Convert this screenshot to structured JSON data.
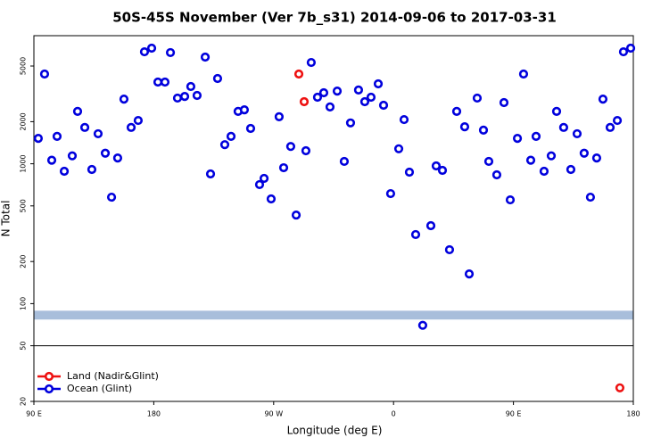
{
  "chart_data": {
    "type": "scatter",
    "title": "50S-45S November (Ver 7b_s31)   2014-09-06 to 2017-03-31",
    "x_label": "Longitude (deg E)",
    "y_label": "N Total",
    "log_y": true,
    "xlim": [
      90,
      540
    ],
    "ylim": [
      20,
      8240
    ],
    "xticks": [
      {
        "value": 90,
        "label": "90 E"
      },
      {
        "value": 180,
        "label": "180"
      },
      {
        "value": 270,
        "label": "90 W"
      },
      {
        "value": 360,
        "label": "0"
      },
      {
        "value": 450,
        "label": "90 E"
      },
      {
        "value": 540,
        "label": "180"
      }
    ],
    "yticks": [
      20,
      50,
      100,
      200,
      500,
      1000,
      2000,
      5000
    ],
    "hline": 50,
    "band": {
      "low": 77,
      "high": 89,
      "color": "#a8bedb"
    },
    "legend": "lower left",
    "series": [
      {
        "name": "Land (Nadir&Glint)",
        "color": "#ee1111",
        "x": [
          288.9,
          292.9,
          529.9
        ],
        "values": [
          4380,
          2780,
          25
        ]
      },
      {
        "name": "Ocean (Glint)",
        "color": "#0000dd",
        "x": [
          93.3,
          98.0,
          103.4,
          107.4,
          112.8,
          118.8,
          122.8,
          128.2,
          133.5,
          138.2,
          143.6,
          148.3,
          152.9,
          157.6,
          163.0,
          168.3,
          173.0,
          178.4,
          183.1,
          188.4,
          192.5,
          197.8,
          203.2,
          207.8,
          212.5,
          218.6,
          222.6,
          227.9,
          233.3,
          238.0,
          243.3,
          248.0,
          252.7,
          259.4,
          262.8,
          268.1,
          274.1,
          277.5,
          282.8,
          286.9,
          294.2,
          298.2,
          302.9,
          307.6,
          312.3,
          317.7,
          323.0,
          327.7,
          333.7,
          338.4,
          343.1,
          348.5,
          352.5,
          357.8,
          363.9,
          367.9,
          371.9,
          376.6,
          381.9,
          388.0,
          392.0,
          396.7,
          402.0,
          407.4,
          413.4,
          416.8,
          422.8,
          427.5,
          431.5,
          437.5,
          442.9,
          447.6,
          453.0,
          457.6,
          463.0,
          467.0,
          473.0,
          478.4,
          482.4,
          487.7,
          493.1,
          497.8,
          503.1,
          507.8,
          512.5,
          517.2,
          522.6,
          528.0,
          532.6,
          538.0
        ],
        "values": [
          1520,
          4380,
          1060,
          1570,
          884,
          1140,
          2370,
          1820,
          910,
          1640,
          1190,
          577,
          1100,
          2900,
          1820,
          2040,
          6320,
          6710,
          3840,
          3840,
          6240,
          2950,
          3030,
          3570,
          3080,
          5790,
          846,
          4070,
          1370,
          1570,
          2370,
          2430,
          1790,
          710,
          786,
          561,
          2170,
          937,
          1330,
          430,
          1240,
          5300,
          2990,
          3220,
          2550,
          3310,
          1040,
          1960,
          3370,
          2780,
          2990,
          3730,
          2620,
          612,
          1280,
          2070,
          871,
          312,
          70,
          361,
          966,
          897,
          243,
          2370,
          1840,
          163,
          2950,
          1740,
          1040,
          834,
          2740,
          552,
          1520,
          4380,
          1060,
          1570,
          884,
          1140,
          2370,
          1820,
          910,
          1640,
          1190,
          577,
          1100,
          2900,
          1820,
          2040,
          6320,
          6710
        ]
      }
    ]
  }
}
